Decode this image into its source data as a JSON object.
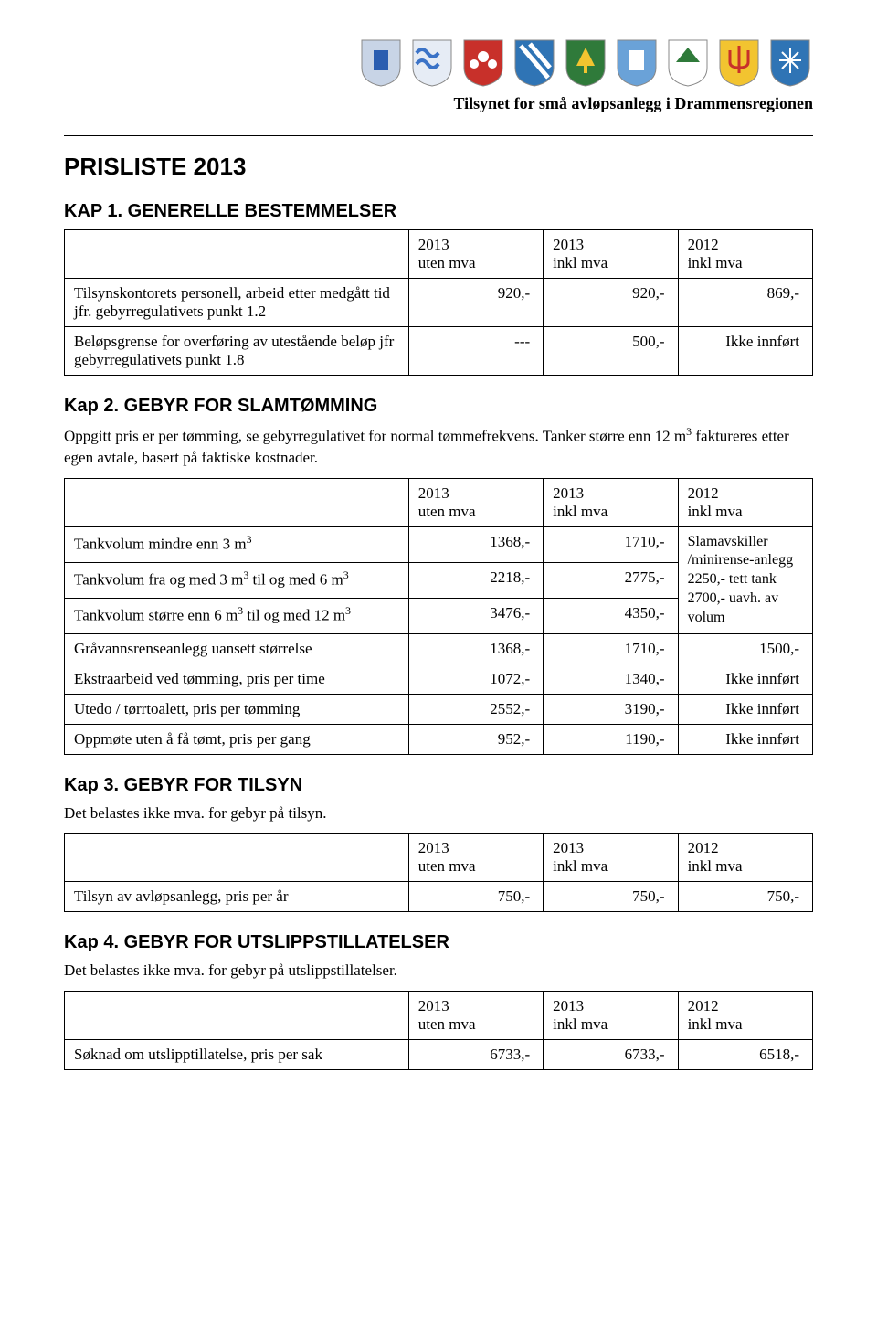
{
  "header": {
    "subtitle": "Tilsynet for små avløpsanlegg i Drammensregionen",
    "logos": [
      {
        "name": "shield-1",
        "bg": "#c8d4e6",
        "fg": "#2a5db0",
        "shape": "rect"
      },
      {
        "name": "shield-2",
        "bg": "#e6ecf5",
        "fg": "#3b73c7",
        "shape": "waves"
      },
      {
        "name": "shield-3",
        "bg": "#c8302a",
        "fg": "#ffffff",
        "shape": "flower"
      },
      {
        "name": "shield-4",
        "bg": "#2f74b5",
        "fg": "#ffffff",
        "shape": "stripes"
      },
      {
        "name": "shield-5",
        "bg": "#2f7a3a",
        "fg": "#f2c430",
        "shape": "tree"
      },
      {
        "name": "shield-6",
        "bg": "#6aa2d8",
        "fg": "#ffffff",
        "shape": "rect"
      },
      {
        "name": "shield-7",
        "bg": "#ffffff",
        "fg": "#2f7a3a",
        "shape": "chevron"
      },
      {
        "name": "shield-8",
        "bg": "#f2c430",
        "fg": "#c8302a",
        "shape": "trident"
      },
      {
        "name": "shield-9",
        "bg": "#2f74b5",
        "fg": "#ffffff",
        "shape": "snow"
      }
    ]
  },
  "title": "PRISLISTE 2013",
  "col_headers": {
    "c1": "2013\nuten mva",
    "c2": "2013\ninkl mva",
    "c3": "2012\ninkl mva"
  },
  "kap1": {
    "heading": "KAP 1. GENERELLE BESTEMMELSER",
    "rows": [
      {
        "desc": "Tilsynskontorets personell, arbeid etter medgått tid jfr. gebyrregulativets punkt 1.2",
        "v1": "920,-",
        "v2": "920,-",
        "v3": "869,-"
      },
      {
        "desc": "Beløpsgrense for overføring av utestående beløp jfr gebyrregulativets punkt 1.8",
        "v1": "---",
        "v2": "500,-",
        "v3": "Ikke innført"
      }
    ]
  },
  "kap2": {
    "heading": "Kap 2. GEBYR FOR SLAMTØMMING",
    "intro": "Oppgitt pris er per tømming, se gebyrregulativet for normal tømmefrekvens. Tanker større enn 12 m³ faktureres etter egen avtale, basert på faktiske kostnader.",
    "merged_note": "Slamavskiller /minirense-anlegg 2250,- tett tank 2700,- uavh. av volum",
    "rows_merged": [
      {
        "desc_html": "Tankvolum mindre enn 3 m<sup>3</sup>",
        "v1": "1368,-",
        "v2": "1710,-"
      },
      {
        "desc_html": "Tankvolum fra og med 3 m<sup>3</sup> til og med 6 m<sup>3</sup>",
        "v1": "2218,-",
        "v2": "2775,-"
      },
      {
        "desc_html": "Tankvolum større enn 6 m<sup>3</sup> til og med 12 m<sup>3</sup>",
        "v1": "3476,-",
        "v2": "4350,-"
      }
    ],
    "rows_rest": [
      {
        "desc": "Gråvannsrenseanlegg uansett størrelse",
        "v1": "1368,-",
        "v2": "1710,-",
        "v3": "1500,-"
      },
      {
        "desc": "Ekstraarbeid ved tømming, pris per time",
        "v1": "1072,-",
        "v2": "1340,-",
        "v3": "Ikke innført"
      },
      {
        "desc": "Utedo / tørrtoalett, pris per tømming",
        "v1": "2552,-",
        "v2": "3190,-",
        "v3": "Ikke innført"
      },
      {
        "desc": "Oppmøte uten å få tømt, pris per gang",
        "v1": "952,-",
        "v2": "1190,-",
        "v3": "Ikke innført"
      }
    ]
  },
  "kap3": {
    "heading": "Kap 3. GEBYR FOR TILSYN",
    "intro": "Det belastes ikke mva. for gebyr på tilsyn.",
    "rows": [
      {
        "desc": "Tilsyn av avløpsanlegg, pris per år",
        "v1": "750,-",
        "v2": "750,-",
        "v3": "750,-"
      }
    ]
  },
  "kap4": {
    "heading": "Kap 4. GEBYR FOR UTSLIPPSTILLATELSER",
    "intro": "Det belastes ikke mva. for gebyr på utslippstillatelser.",
    "rows": [
      {
        "desc": "Søknad om utslipptillatelse, pris per sak",
        "v1": "6733,-",
        "v2": "6733,-",
        "v3": "6518,-"
      }
    ]
  }
}
